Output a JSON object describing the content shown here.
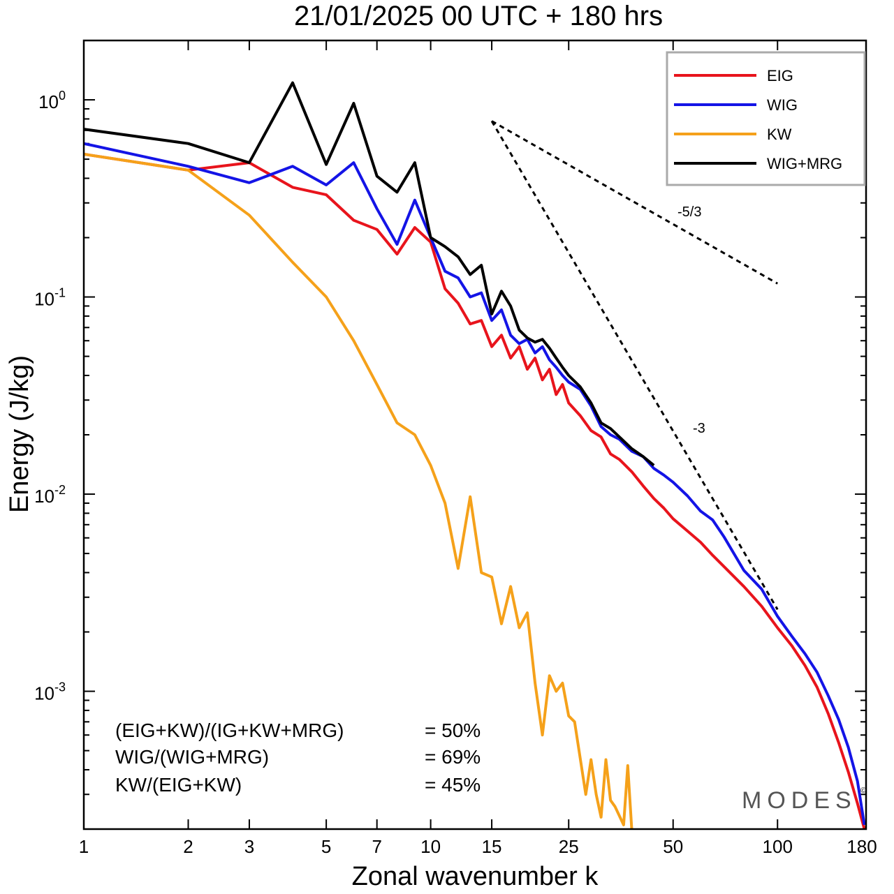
{
  "chart_data": {
    "type": "line",
    "title": "21/01/2025  00 UTC  + 180 hrs",
    "xlabel": "Zonal wavenumber k",
    "ylabel": "Energy (J/kg)",
    "xscale": "log",
    "yscale": "log",
    "xlim": [
      1,
      180
    ],
    "ylim": [
      0.0002,
      2.0
    ],
    "grid": false,
    "legend_position": "top-right",
    "x_ticks": [
      1,
      2,
      3,
      5,
      7,
      10,
      15,
      25,
      50,
      100,
      180
    ],
    "x_tick_labels": [
      "1",
      "2",
      "3",
      "5",
      "7",
      "10",
      "15",
      "25",
      "50",
      "100",
      "180"
    ],
    "y_ticks": [
      {
        "value": 1.0,
        "base": "10",
        "exp": "0"
      },
      {
        "value": 0.1,
        "base": "10",
        "exp": "-1"
      },
      {
        "value": 0.01,
        "base": "10",
        "exp": "-2"
      },
      {
        "value": 0.001,
        "base": "10",
        "exp": "-3"
      }
    ],
    "series": [
      {
        "name": "EIG",
        "color": "#e8141c",
        "points": [
          [
            1,
            0.53
          ],
          [
            2,
            0.44
          ],
          [
            3,
            0.48
          ],
          [
            4,
            0.36
          ],
          [
            5,
            0.33
          ],
          [
            6,
            0.245
          ],
          [
            7,
            0.22
          ],
          [
            8,
            0.165
          ],
          [
            9,
            0.225
          ],
          [
            10,
            0.19
          ],
          [
            11,
            0.11
          ],
          [
            12,
            0.093
          ],
          [
            13,
            0.073
          ],
          [
            14,
            0.076
          ],
          [
            15,
            0.056
          ],
          [
            16,
            0.064
          ],
          [
            17,
            0.049
          ],
          [
            18,
            0.056
          ],
          [
            19,
            0.043
          ],
          [
            20,
            0.049
          ],
          [
            21,
            0.038
          ],
          [
            22,
            0.043
          ],
          [
            23,
            0.032
          ],
          [
            24,
            0.036
          ],
          [
            25,
            0.029
          ],
          [
            27,
            0.025
          ],
          [
            29,
            0.021
          ],
          [
            31,
            0.0195
          ],
          [
            33,
            0.016
          ],
          [
            35,
            0.015
          ],
          [
            38,
            0.013
          ],
          [
            41,
            0.011
          ],
          [
            44,
            0.0095
          ],
          [
            47,
            0.0085
          ],
          [
            50,
            0.0075
          ],
          [
            55,
            0.0065
          ],
          [
            60,
            0.0057
          ],
          [
            65,
            0.0049
          ],
          [
            70,
            0.0043
          ],
          [
            80,
            0.0034
          ],
          [
            90,
            0.0027
          ],
          [
            100,
            0.0021
          ],
          [
            110,
            0.0017
          ],
          [
            120,
            0.00135
          ],
          [
            130,
            0.00105
          ],
          [
            140,
            0.00077
          ],
          [
            150,
            0.00055
          ],
          [
            160,
            0.00039
          ],
          [
            170,
            0.00027
          ],
          [
            178,
            0.0002
          ]
        ]
      },
      {
        "name": "WIG",
        "color": "#1414e6",
        "points": [
          [
            1,
            0.6
          ],
          [
            2,
            0.46
          ],
          [
            3,
            0.38
          ],
          [
            4,
            0.46
          ],
          [
            5,
            0.37
          ],
          [
            6,
            0.48
          ],
          [
            7,
            0.28
          ],
          [
            8,
            0.185
          ],
          [
            9,
            0.31
          ],
          [
            10,
            0.2
          ],
          [
            11,
            0.135
          ],
          [
            12,
            0.125
          ],
          [
            13,
            0.1
          ],
          [
            14,
            0.105
          ],
          [
            15,
            0.076
          ],
          [
            16,
            0.086
          ],
          [
            17,
            0.064
          ],
          [
            18,
            0.058
          ],
          [
            19,
            0.061
          ],
          [
            20,
            0.052
          ],
          [
            21,
            0.056
          ],
          [
            22,
            0.048
          ],
          [
            23,
            0.044
          ],
          [
            24,
            0.04
          ],
          [
            25,
            0.037
          ],
          [
            27,
            0.034
          ],
          [
            29,
            0.028
          ],
          [
            31,
            0.022
          ],
          [
            33,
            0.02
          ],
          [
            35,
            0.019
          ],
          [
            38,
            0.0165
          ],
          [
            41,
            0.0155
          ],
          [
            44,
            0.0135
          ],
          [
            47,
            0.0125
          ],
          [
            50,
            0.0115
          ],
          [
            55,
            0.0098
          ],
          [
            60,
            0.0082
          ],
          [
            65,
            0.0074
          ],
          [
            70,
            0.0061
          ],
          [
            80,
            0.0041
          ],
          [
            90,
            0.0033
          ],
          [
            100,
            0.0024
          ],
          [
            110,
            0.0019
          ],
          [
            120,
            0.00155
          ],
          [
            130,
            0.00125
          ],
          [
            140,
            0.00095
          ],
          [
            150,
            0.00072
          ],
          [
            160,
            0.00052
          ],
          [
            170,
            0.00035
          ],
          [
            178,
            0.00021
          ]
        ]
      },
      {
        "name": "KW",
        "color": "#f5a11a",
        "points": [
          [
            1,
            0.53
          ],
          [
            2,
            0.44
          ],
          [
            3,
            0.26
          ],
          [
            4,
            0.15
          ],
          [
            5,
            0.1
          ],
          [
            6,
            0.06
          ],
          [
            7,
            0.036
          ],
          [
            8,
            0.023
          ],
          [
            9,
            0.02
          ],
          [
            10,
            0.014
          ],
          [
            11,
            0.009
          ],
          [
            12,
            0.0042
          ],
          [
            13,
            0.0097
          ],
          [
            14,
            0.004
          ],
          [
            15,
            0.0038
          ],
          [
            16,
            0.0022
          ],
          [
            17,
            0.0034
          ],
          [
            18,
            0.0021
          ],
          [
            19,
            0.0025
          ],
          [
            20,
            0.0011
          ],
          [
            21,
            0.0006
          ],
          [
            22,
            0.0012
          ],
          [
            23,
            0.001
          ],
          [
            24,
            0.0011
          ],
          [
            25,
            0.00075
          ],
          [
            26,
            0.0007
          ],
          [
            28,
            0.0003
          ],
          [
            29,
            0.00045
          ],
          [
            30,
            0.0003
          ],
          [
            31,
            0.00023
          ],
          [
            32,
            0.00045
          ],
          [
            33,
            0.00028
          ],
          [
            34,
            0.00026
          ],
          [
            36,
            0.00021
          ],
          [
            37,
            0.00042
          ],
          [
            38,
            0.0002
          ]
        ]
      },
      {
        "name": "WIG+MRG",
        "color": "#000000",
        "points": [
          [
            1,
            0.71
          ],
          [
            2,
            0.6
          ],
          [
            3,
            0.48
          ],
          [
            4,
            1.22
          ],
          [
            5,
            0.47
          ],
          [
            6,
            0.96
          ],
          [
            7,
            0.41
          ],
          [
            8,
            0.34
          ],
          [
            9,
            0.48
          ],
          [
            10,
            0.2
          ],
          [
            11,
            0.18
          ],
          [
            12,
            0.16
          ],
          [
            13,
            0.13
          ],
          [
            14,
            0.145
          ],
          [
            15,
            0.082
          ],
          [
            16,
            0.107
          ],
          [
            17,
            0.09
          ],
          [
            18,
            0.068
          ],
          [
            19,
            0.062
          ],
          [
            20,
            0.059
          ],
          [
            21,
            0.061
          ],
          [
            22,
            0.055
          ],
          [
            23,
            0.049
          ],
          [
            24,
            0.044
          ],
          [
            25,
            0.04
          ],
          [
            27,
            0.035
          ],
          [
            29,
            0.029
          ],
          [
            31,
            0.023
          ],
          [
            33,
            0.0215
          ],
          [
            35,
            0.0195
          ],
          [
            38,
            0.017
          ],
          [
            41,
            0.0155
          ],
          [
            44,
            0.014
          ]
        ]
      }
    ],
    "reference_slopes": [
      {
        "label": "-5/3",
        "from": [
          15,
          0.78
        ],
        "to": [
          100,
          0.117
        ]
      },
      {
        "label": "-3",
        "from": [
          15,
          0.78
        ],
        "to": [
          100,
          0.0026
        ]
      }
    ],
    "annotations": [
      {
        "label": "(EIG+KW)/(IG+KW+MRG)",
        "value": "= 50%"
      },
      {
        "label": "WIG/(WIG+MRG)",
        "value": "= 69%"
      },
      {
        "label": "KW/(EIG+KW)",
        "value": "= 45%"
      }
    ]
  },
  "watermark": {
    "text": "MODES",
    "symbol": "©"
  }
}
